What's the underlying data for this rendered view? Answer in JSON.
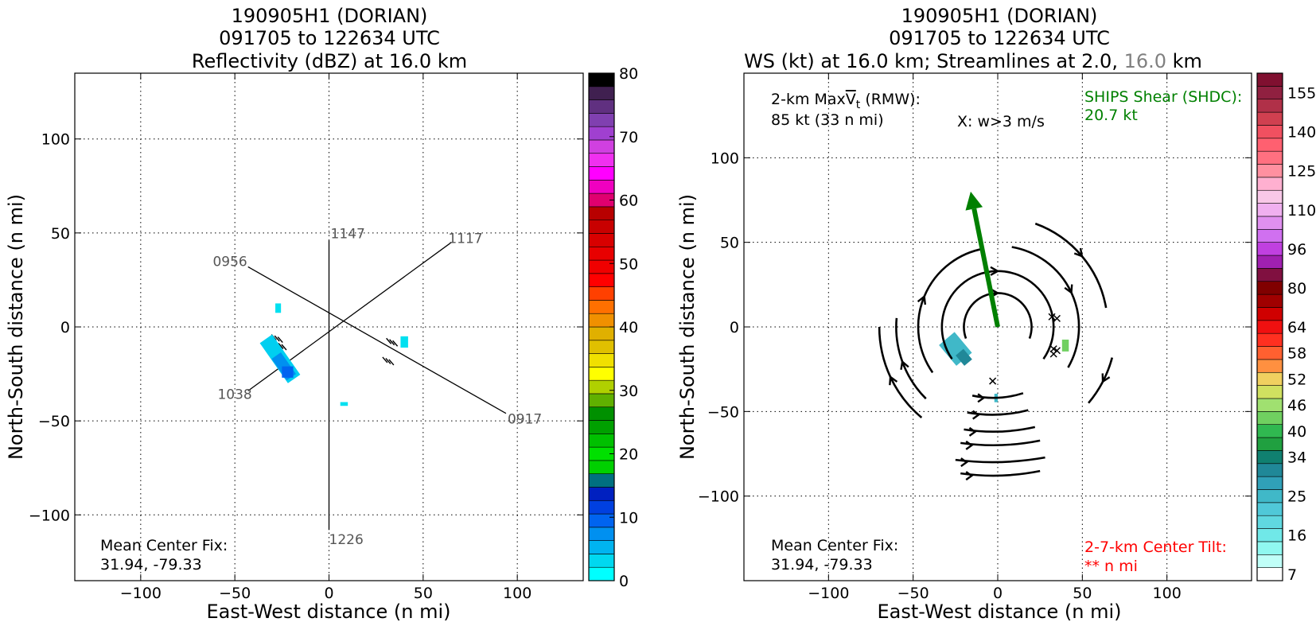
{
  "chart_data": [
    {
      "type": "heatmap",
      "title_lines": [
        "190905H1 (DORIAN)",
        "091705 to 122634 UTC",
        "Reflectivity (dBZ) at 16.0 km"
      ],
      "xlabel": "East-West distance (n mi)",
      "ylabel": "North-South distance (n mi)",
      "xlim": [
        -135,
        135
      ],
      "ylim": [
        -135,
        135
      ],
      "xticks": [
        -100,
        -50,
        0,
        50,
        100
      ],
      "yticks": [
        -100,
        -50,
        0,
        50,
        100
      ],
      "tick_labels_x": [
        "−100",
        "−50",
        "0",
        "50",
        "100"
      ],
      "tick_labels_y": [
        "−100",
        "−50",
        "0",
        "50",
        "100"
      ],
      "grid": true,
      "colorbar": {
        "min": 0,
        "max": 80,
        "step": 5,
        "tick_values": [
          0,
          10,
          20,
          30,
          40,
          50,
          60,
          70,
          80
        ],
        "tick_labels": [
          "0",
          "10",
          "20",
          "30",
          "40",
          "50",
          "60",
          "70",
          "80"
        ],
        "colors": [
          "#00ffff",
          "#00d8f0",
          "#00b4f0",
          "#0090f0",
          "#0064f0",
          "#0040e0",
          "#0020c0",
          "#007080",
          "#00d000",
          "#00e000",
          "#00c000",
          "#00a000",
          "#009000",
          "#60b000",
          "#b0d000",
          "#ffff00",
          "#f0e000",
          "#e0c000",
          "#e0b000",
          "#f09000",
          "#ff7000",
          "#ff4000",
          "#ff0000",
          "#f00000",
          "#e80000",
          "#d80000",
          "#c80000",
          "#b80000",
          "#e00070",
          "#f000c0",
          "#ff00ff",
          "#f030f0",
          "#d040e0",
          "#a040d0",
          "#8040b0",
          "#603080",
          "#402050",
          "#000000"
        ]
      },
      "track_labels": [
        "1147",
        "1117",
        "0956",
        "1038",
        "0917",
        "1226"
      ],
      "tracks": [
        {
          "from": [
            0,
            46
          ],
          "to": [
            0,
            -108
          ]
        },
        {
          "from": [
            -43,
            -34
          ],
          "to": [
            65,
            45
          ]
        },
        {
          "from": [
            -43,
            32
          ],
          "to": [
            94,
            -46
          ]
        }
      ],
      "echoes": [
        {
          "x": -26,
          "y": -17,
          "w": 8,
          "h": 26,
          "angle": 35,
          "color": "#00cff0"
        },
        {
          "x": -24,
          "y": -21,
          "w": 6,
          "h": 14,
          "angle": 35,
          "color": "#0090f0"
        },
        {
          "x": -22,
          "y": -24,
          "w": 6,
          "h": 6,
          "angle": 0,
          "color": "#0064f0"
        },
        {
          "x": -27,
          "y": 10,
          "w": 3,
          "h": 5,
          "angle": 0,
          "color": "#00e0f0"
        },
        {
          "x": 40,
          "y": -8,
          "w": 4,
          "h": 6,
          "angle": 0,
          "color": "#00e0f0"
        },
        {
          "x": 8,
          "y": -41,
          "w": 4,
          "h": 2,
          "angle": 0,
          "color": "#00e0f0"
        }
      ],
      "annotations": {
        "center_fix_label": "Mean Center Fix:",
        "center_fix_value": "31.94, -79.33"
      }
    },
    {
      "type": "heatmap",
      "title_lines": [
        "190905H1 (DORIAN)",
        "091705 to 122634 UTC"
      ],
      "title_line3_prefix": "WS (kt) at 16.0 km; Streamlines at 2.0, ",
      "title_line3_highlight": "16.0",
      "title_line3_suffix": " km",
      "title_highlight_color": "#808080",
      "xlabel": "East-West distance (n mi)",
      "ylabel": "North-South distance (n mi)",
      "xlim": [
        -150,
        150
      ],
      "ylim": [
        -150,
        150
      ],
      "xticks": [
        -100,
        -50,
        0,
        50,
        100
      ],
      "yticks": [
        -100,
        -50,
        0,
        50,
        100
      ],
      "tick_labels_x": [
        "−100",
        "−50",
        "0",
        "50",
        "100"
      ],
      "tick_labels_y": [
        "−100",
        "−50",
        "0",
        "50",
        "100"
      ],
      "grid": true,
      "colorbar": {
        "tick_labels": [
          "7",
          "16",
          "25",
          "34",
          "40",
          "46",
          "52",
          "58",
          "64",
          "80",
          "96",
          "110",
          "125",
          "140",
          "155"
        ],
        "tick_levels": [
          0.5,
          3.5,
          6.5,
          9.5,
          11.5,
          13.5,
          15.5,
          17.5,
          19.5,
          22.5,
          25.5,
          28.5,
          31.5,
          34.5,
          37.5
        ],
        "colors": [
          "#ffffff",
          "#c0fff8",
          "#90f8f0",
          "#70e8e8",
          "#60d8e0",
          "#50c8d8",
          "#40b8c8",
          "#30a0b8",
          "#208898",
          "#108070",
          "#20a040",
          "#30b850",
          "#70d060",
          "#a0e070",
          "#d0e060",
          "#f0d060",
          "#ff9040",
          "#ff6030",
          "#ff3020",
          "#f01010",
          "#d00000",
          "#a00000",
          "#800000",
          "#801040",
          "#a020b0",
          "#c040e0",
          "#d070f0",
          "#e090f0",
          "#f0b0f0",
          "#f8c8e8",
          "#ffb0d0",
          "#ff90a0",
          "#ff7080",
          "#ff6070",
          "#f05060",
          "#d04050",
          "#b03048",
          "#902040",
          "#801030"
        ]
      },
      "info": {
        "vt_label_prefix": "2-km Max",
        "vt_label_v": "V",
        "vt_label_sub": "t",
        "vt_label_suffix": " (RMW):",
        "vt_value": "85 kt (33 n mi)",
        "w_note": "X: w>3 m/s",
        "shear_label": "SHIPS Shear (SHDC):",
        "shear_value": "20.7 kt",
        "shear_color": "#008000",
        "center_fix_label": "Mean Center Fix:",
        "center_fix_value": "31.94, -79.33",
        "tilt_label": "2-7-km Center Tilt:",
        "tilt_value": "** n mi",
        "tilt_color": "#ff0000"
      },
      "shear_vector": {
        "from": [
          0,
          0
        ],
        "to": [
          -16,
          80
        ],
        "color": "#008000"
      },
      "w_markers": [
        [
          32,
          6
        ],
        [
          35,
          5
        ],
        [
          33,
          -13
        ],
        [
          35,
          -14
        ],
        [
          33,
          -16
        ],
        [
          -3,
          -32
        ]
      ],
      "echoes": [
        {
          "x": -25,
          "y": -13,
          "w": 12,
          "h": 16,
          "angle": 40,
          "color": "#40b8c8"
        },
        {
          "x": -20,
          "y": -18,
          "w": 6,
          "h": 8,
          "angle": 40,
          "color": "#208898"
        },
        {
          "x": 40,
          "y": -11,
          "w": 4,
          "h": 7,
          "angle": 0,
          "color": "#70d060"
        },
        {
          "x": -1,
          "y": -42,
          "w": 2,
          "h": 5,
          "angle": 0,
          "color": "#40b8c8"
        }
      ],
      "streamline_arcs": [
        {
          "r": 20,
          "a0": 200,
          "a1": -20
        },
        {
          "r": 33,
          "a0": 215,
          "a1": -35
        },
        {
          "r": 47,
          "a0": 215,
          "a1": 100
        },
        {
          "r": 60,
          "a0": 225,
          "a1": 175
        },
        {
          "r": 70,
          "a0": 230,
          "a1": 180
        },
        {
          "r": 48,
          "a0": 80,
          "a1": -30
        },
        {
          "r": 65,
          "a0": 70,
          "a1": 10
        },
        {
          "r": 70,
          "a0": -15,
          "a1": -40
        }
      ],
      "streamline_horizontal": [
        {
          "y": -42,
          "x0": -15,
          "x1": 15
        },
        {
          "y": -52,
          "x0": -18,
          "x1": 18
        },
        {
          "y": -62,
          "x0": -20,
          "x1": 22
        },
        {
          "y": -70,
          "x0": -22,
          "x1": 25
        },
        {
          "y": -80,
          "x0": -25,
          "x1": 28
        },
        {
          "y": -88,
          "x0": -22,
          "x1": 25
        }
      ]
    }
  ]
}
